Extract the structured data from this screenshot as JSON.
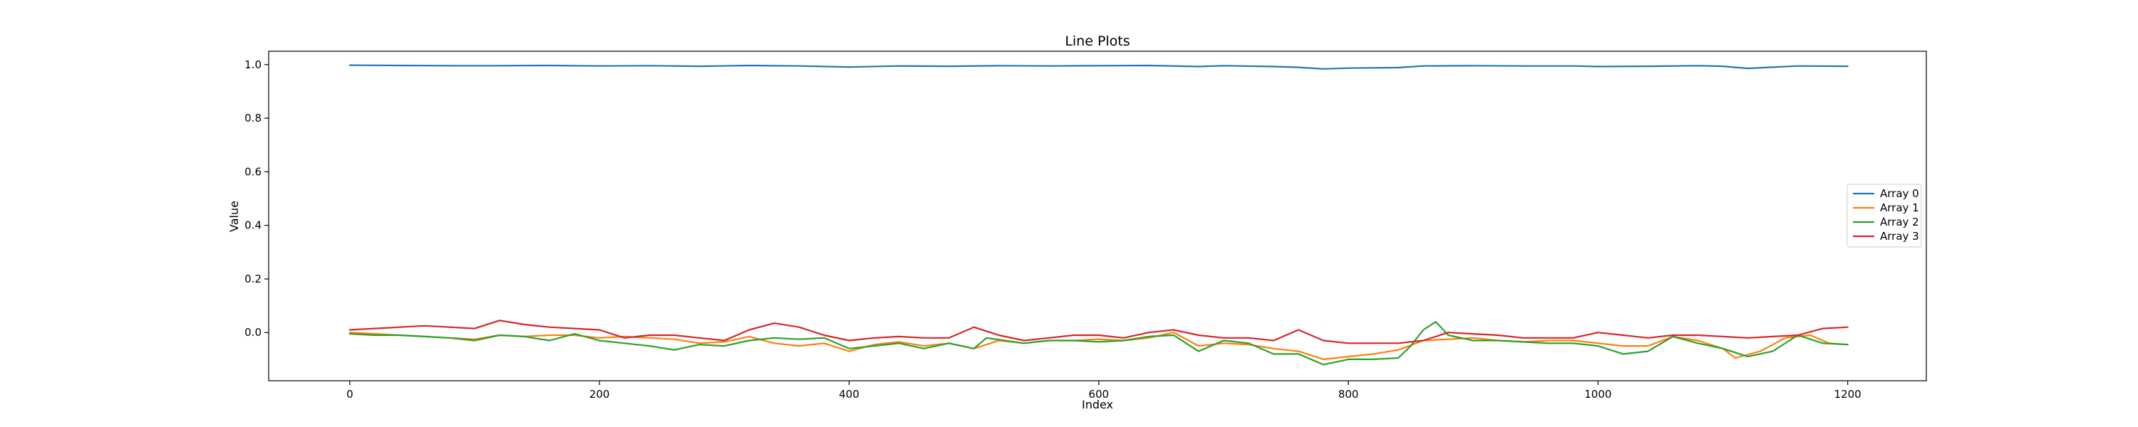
{
  "chart_data": {
    "type": "line",
    "title": "Line Plots",
    "xlabel": "Index",
    "ylabel": "Value",
    "xlim": [
      -65,
      1263
    ],
    "ylim": [
      -0.18,
      1.05
    ],
    "xticks": [
      0,
      200,
      400,
      600,
      800,
      1000,
      1200
    ],
    "yticks": [
      0.0,
      0.2,
      0.4,
      0.6,
      0.8,
      1.0
    ],
    "ytick_labels": [
      "0.0",
      "0.2",
      "0.4",
      "0.6",
      "0.8",
      "1.0"
    ],
    "grid": false,
    "legend_position": "center-right",
    "series": [
      {
        "name": "Array 0",
        "color": "#1f77b4",
        "points": [
          [
            0,
            0.998
          ],
          [
            40,
            0.997
          ],
          [
            80,
            0.996
          ],
          [
            120,
            0.996
          ],
          [
            160,
            0.997
          ],
          [
            200,
            0.995
          ],
          [
            240,
            0.996
          ],
          [
            280,
            0.994
          ],
          [
            320,
            0.997
          ],
          [
            360,
            0.995
          ],
          [
            400,
            0.991
          ],
          [
            440,
            0.995
          ],
          [
            480,
            0.994
          ],
          [
            520,
            0.996
          ],
          [
            560,
            0.995
          ],
          [
            600,
            0.996
          ],
          [
            640,
            0.997
          ],
          [
            680,
            0.993
          ],
          [
            700,
            0.996
          ],
          [
            740,
            0.993
          ],
          [
            760,
            0.99
          ],
          [
            780,
            0.984
          ],
          [
            800,
            0.987
          ],
          [
            840,
            0.989
          ],
          [
            860,
            0.995
          ],
          [
            900,
            0.996
          ],
          [
            940,
            0.995
          ],
          [
            980,
            0.995
          ],
          [
            1000,
            0.993
          ],
          [
            1040,
            0.994
          ],
          [
            1080,
            0.996
          ],
          [
            1100,
            0.994
          ],
          [
            1120,
            0.986
          ],
          [
            1160,
            0.995
          ],
          [
            1200,
            0.994
          ]
        ]
      },
      {
        "name": "Array 1",
        "color": "#ff7f0e",
        "points": [
          [
            0,
            0.0
          ],
          [
            20,
            -0.005
          ],
          [
            40,
            -0.01
          ],
          [
            60,
            -0.015
          ],
          [
            80,
            -0.02
          ],
          [
            100,
            -0.025
          ],
          [
            120,
            -0.01
          ],
          [
            140,
            -0.015
          ],
          [
            160,
            -0.01
          ],
          [
            180,
            -0.01
          ],
          [
            200,
            -0.02
          ],
          [
            220,
            -0.015
          ],
          [
            240,
            -0.02
          ],
          [
            260,
            -0.025
          ],
          [
            280,
            -0.04
          ],
          [
            300,
            -0.035
          ],
          [
            320,
            -0.015
          ],
          [
            340,
            -0.04
          ],
          [
            360,
            -0.05
          ],
          [
            380,
            -0.04
          ],
          [
            400,
            -0.07
          ],
          [
            420,
            -0.045
          ],
          [
            440,
            -0.035
          ],
          [
            460,
            -0.05
          ],
          [
            480,
            -0.04
          ],
          [
            500,
            -0.06
          ],
          [
            520,
            -0.03
          ],
          [
            540,
            -0.04
          ],
          [
            560,
            -0.03
          ],
          [
            580,
            -0.03
          ],
          [
            600,
            -0.025
          ],
          [
            620,
            -0.03
          ],
          [
            640,
            -0.02
          ],
          [
            660,
            0.0
          ],
          [
            680,
            -0.05
          ],
          [
            700,
            -0.04
          ],
          [
            720,
            -0.045
          ],
          [
            740,
            -0.06
          ],
          [
            760,
            -0.07
          ],
          [
            780,
            -0.1
          ],
          [
            800,
            -0.09
          ],
          [
            820,
            -0.08
          ],
          [
            840,
            -0.065
          ],
          [
            860,
            -0.03
          ],
          [
            880,
            -0.025
          ],
          [
            900,
            -0.02
          ],
          [
            920,
            -0.03
          ],
          [
            940,
            -0.035
          ],
          [
            960,
            -0.03
          ],
          [
            980,
            -0.03
          ],
          [
            1000,
            -0.04
          ],
          [
            1020,
            -0.05
          ],
          [
            1040,
            -0.05
          ],
          [
            1060,
            -0.015
          ],
          [
            1080,
            -0.03
          ],
          [
            1100,
            -0.06
          ],
          [
            1110,
            -0.095
          ],
          [
            1130,
            -0.07
          ],
          [
            1150,
            -0.02
          ],
          [
            1170,
            -0.01
          ],
          [
            1185,
            -0.04
          ],
          [
            1200,
            -0.045
          ]
        ]
      },
      {
        "name": "Array 2",
        "color": "#2ca02c",
        "points": [
          [
            0,
            -0.005
          ],
          [
            20,
            -0.01
          ],
          [
            40,
            -0.01
          ],
          [
            60,
            -0.015
          ],
          [
            80,
            -0.02
          ],
          [
            100,
            -0.03
          ],
          [
            120,
            -0.01
          ],
          [
            140,
            -0.015
          ],
          [
            160,
            -0.03
          ],
          [
            180,
            -0.005
          ],
          [
            200,
            -0.03
          ],
          [
            220,
            -0.04
          ],
          [
            240,
            -0.05
          ],
          [
            260,
            -0.065
          ],
          [
            280,
            -0.045
          ],
          [
            300,
            -0.05
          ],
          [
            320,
            -0.03
          ],
          [
            340,
            -0.02
          ],
          [
            360,
            -0.025
          ],
          [
            380,
            -0.02
          ],
          [
            400,
            -0.06
          ],
          [
            420,
            -0.05
          ],
          [
            440,
            -0.04
          ],
          [
            460,
            -0.06
          ],
          [
            480,
            -0.04
          ],
          [
            500,
            -0.06
          ],
          [
            510,
            -0.02
          ],
          [
            540,
            -0.04
          ],
          [
            560,
            -0.03
          ],
          [
            580,
            -0.03
          ],
          [
            600,
            -0.035
          ],
          [
            620,
            -0.03
          ],
          [
            640,
            -0.015
          ],
          [
            660,
            -0.01
          ],
          [
            680,
            -0.07
          ],
          [
            700,
            -0.03
          ],
          [
            720,
            -0.04
          ],
          [
            740,
            -0.08
          ],
          [
            760,
            -0.08
          ],
          [
            780,
            -0.12
          ],
          [
            800,
            -0.1
          ],
          [
            820,
            -0.1
          ],
          [
            840,
            -0.095
          ],
          [
            850,
            -0.05
          ],
          [
            860,
            0.01
          ],
          [
            870,
            0.04
          ],
          [
            880,
            -0.01
          ],
          [
            900,
            -0.03
          ],
          [
            920,
            -0.03
          ],
          [
            940,
            -0.035
          ],
          [
            960,
            -0.04
          ],
          [
            980,
            -0.04
          ],
          [
            1000,
            -0.05
          ],
          [
            1020,
            -0.08
          ],
          [
            1040,
            -0.07
          ],
          [
            1060,
            -0.015
          ],
          [
            1080,
            -0.04
          ],
          [
            1100,
            -0.06
          ],
          [
            1120,
            -0.09
          ],
          [
            1140,
            -0.07
          ],
          [
            1160,
            -0.01
          ],
          [
            1180,
            -0.04
          ],
          [
            1200,
            -0.045
          ]
        ]
      },
      {
        "name": "Array 3",
        "color": "#d62728",
        "points": [
          [
            0,
            0.01
          ],
          [
            20,
            0.015
          ],
          [
            40,
            0.02
          ],
          [
            60,
            0.025
          ],
          [
            80,
            0.02
          ],
          [
            100,
            0.015
          ],
          [
            120,
            0.045
          ],
          [
            140,
            0.03
          ],
          [
            160,
            0.02
          ],
          [
            180,
            0.015
          ],
          [
            200,
            0.01
          ],
          [
            220,
            -0.02
          ],
          [
            240,
            -0.01
          ],
          [
            260,
            -0.01
          ],
          [
            280,
            -0.02
          ],
          [
            300,
            -0.03
          ],
          [
            320,
            0.01
          ],
          [
            340,
            0.035
          ],
          [
            360,
            0.02
          ],
          [
            380,
            -0.01
          ],
          [
            400,
            -0.03
          ],
          [
            420,
            -0.02
          ],
          [
            440,
            -0.015
          ],
          [
            460,
            -0.02
          ],
          [
            480,
            -0.02
          ],
          [
            500,
            0.02
          ],
          [
            520,
            -0.01
          ],
          [
            540,
            -0.03
          ],
          [
            560,
            -0.02
          ],
          [
            580,
            -0.01
          ],
          [
            600,
            -0.01
          ],
          [
            620,
            -0.02
          ],
          [
            640,
            0.0
          ],
          [
            660,
            0.01
          ],
          [
            680,
            -0.01
          ],
          [
            700,
            -0.02
          ],
          [
            720,
            -0.02
          ],
          [
            740,
            -0.03
          ],
          [
            760,
            0.01
          ],
          [
            780,
            -0.03
          ],
          [
            800,
            -0.04
          ],
          [
            820,
            -0.04
          ],
          [
            840,
            -0.04
          ],
          [
            860,
            -0.03
          ],
          [
            880,
            0.0
          ],
          [
            900,
            -0.005
          ],
          [
            920,
            -0.01
          ],
          [
            940,
            -0.02
          ],
          [
            960,
            -0.02
          ],
          [
            980,
            -0.02
          ],
          [
            1000,
            0.0
          ],
          [
            1020,
            -0.01
          ],
          [
            1040,
            -0.02
          ],
          [
            1060,
            -0.01
          ],
          [
            1080,
            -0.01
          ],
          [
            1100,
            -0.015
          ],
          [
            1120,
            -0.02
          ],
          [
            1140,
            -0.015
          ],
          [
            1160,
            -0.01
          ],
          [
            1180,
            0.015
          ],
          [
            1200,
            0.02
          ]
        ]
      }
    ]
  }
}
